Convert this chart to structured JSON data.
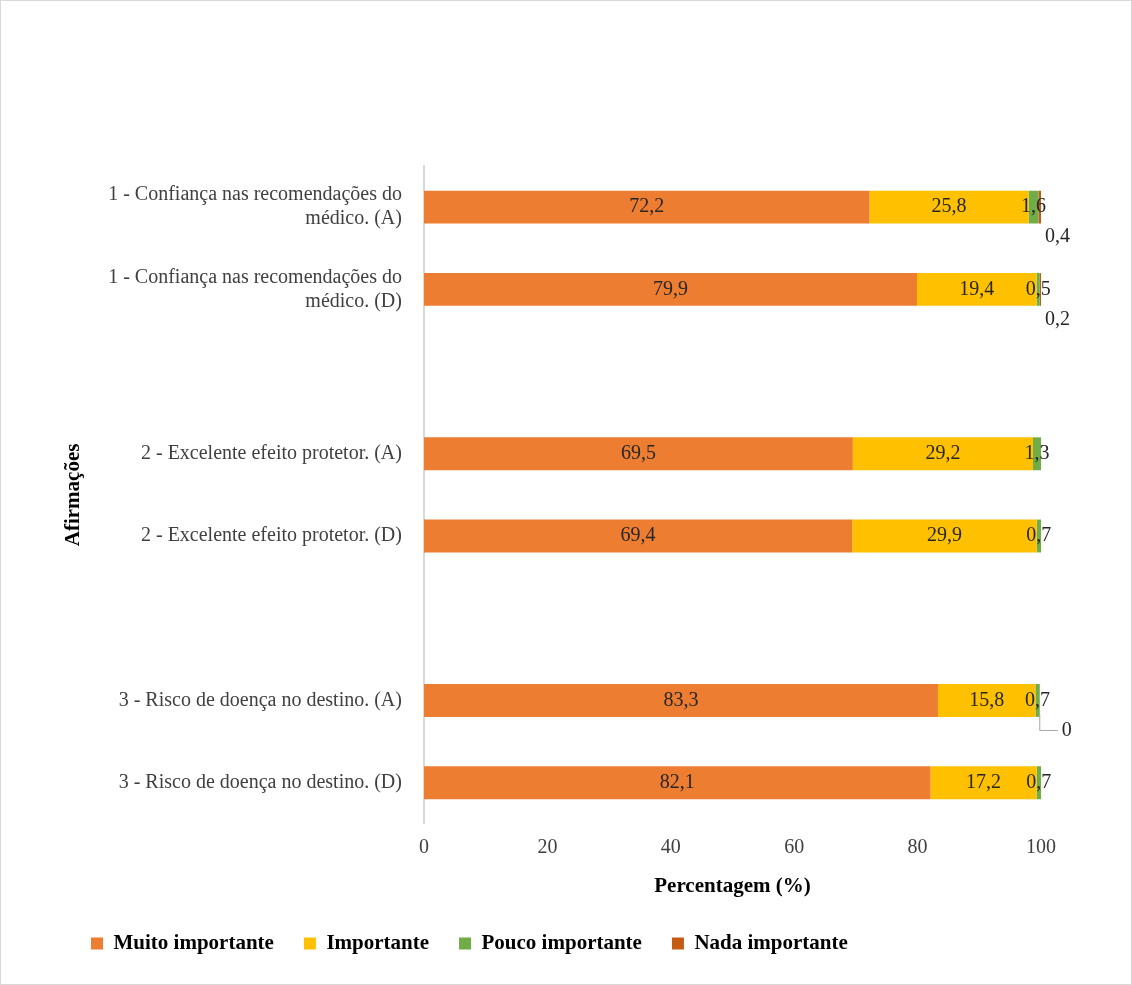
{
  "chart_data": {
    "type": "bar",
    "orientation": "horizontal",
    "stacked": true,
    "xlabel": "Percentagem (%)",
    "ylabel": "Afirmações",
    "categories": [
      "1 - Confiança nas recomendações do médico. (A)",
      "1 - Confiança nas recomendações do médico. (D)",
      null,
      "2 - Excelente efeito protetor. (A)",
      "2 - Excelente efeito protetor. (D)",
      null,
      "3 - Risco de doença no destino. (A)",
      "3 - Risco de doença no destino. (D)"
    ],
    "series": [
      {
        "name": "Muito importante",
        "color": "#ed7d31",
        "values": [
          72.2,
          79.9,
          null,
          69.5,
          69.4,
          null,
          83.3,
          82.1
        ],
        "value_labels": [
          "72,2",
          "79,9",
          null,
          "69,5",
          "69,4",
          null,
          "83,3",
          "82,1"
        ]
      },
      {
        "name": "Importante",
        "color": "#ffc000",
        "values": [
          25.8,
          19.4,
          null,
          29.2,
          29.9,
          null,
          15.8,
          17.2
        ],
        "value_labels": [
          "25,8",
          "19,4",
          null,
          "29,2",
          "29,9",
          null,
          "15,8",
          "17,2"
        ]
      },
      {
        "name": "Pouco importante",
        "color": "#70ad47",
        "values": [
          1.6,
          0.5,
          null,
          1.3,
          0.7,
          null,
          0.7,
          0.7
        ],
        "value_labels": [
          "1,6",
          "0,5",
          null,
          "1,3",
          "0,7",
          null,
          "0,7",
          "0,7"
        ]
      },
      {
        "name": "Nada importante",
        "color": "#c55a11",
        "values": [
          0.4,
          0.2,
          null,
          null,
          null,
          null,
          0,
          null
        ],
        "value_labels": [
          "0,4",
          "0,2",
          null,
          null,
          null,
          null,
          "0",
          null
        ]
      }
    ],
    "xlim": [
      0,
      100
    ],
    "xticks": [
      0,
      20,
      40,
      60,
      80,
      100
    ],
    "grid": false,
    "legend": "bottom left"
  }
}
